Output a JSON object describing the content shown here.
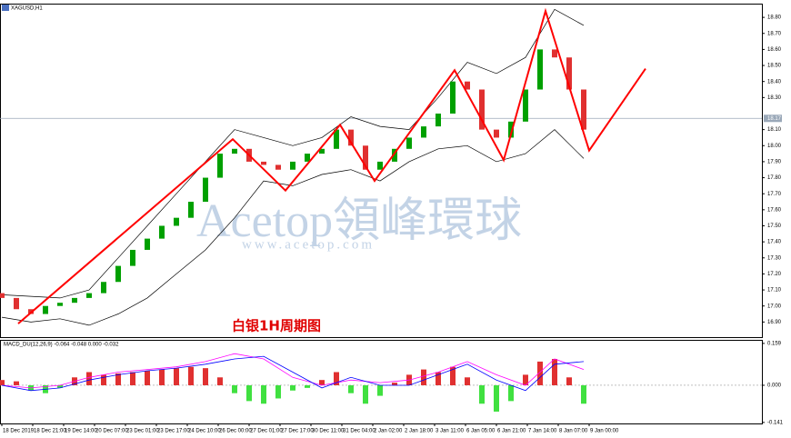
{
  "chart_data": [
    {
      "type": "candlestick",
      "title": "XAGUSD,H1",
      "annotation": "白银1H周期图",
      "watermark": "Acetop領峰環球",
      "watermark_url": "www.acetop.com",
      "xlim": [
        -1,
        418
      ],
      "xticks": [
        {
          "value": 0,
          "label": "18 Dec 2019"
        },
        {
          "value": 17,
          "label": "18 Dec 21:00"
        },
        {
          "value": 34,
          "label": "19 Dec 14:00"
        },
        {
          "value": 51,
          "label": "20 Dec 07:00"
        },
        {
          "value": 68,
          "label": "23 Dec 01:00"
        },
        {
          "value": 85,
          "label": "23 Dec 17:00"
        },
        {
          "value": 102,
          "label": "24 Dec 10:00"
        },
        {
          "value": 119,
          "label": "26 Dec 00:00"
        },
        {
          "value": 136,
          "label": "27 Dec 01:00"
        },
        {
          "value": 153,
          "label": "27 Dec 17:00"
        },
        {
          "value": 170,
          "label": "30 Dec 11:00"
        },
        {
          "value": 187,
          "label": "31 Dec 04:00"
        },
        {
          "value": 204,
          "label": "2 Jan 02:00"
        },
        {
          "value": 221,
          "label": "2 Jan 18:00"
        },
        {
          "value": 238,
          "label": "3 Jan 11:00"
        },
        {
          "value": 255,
          "label": "6 Jan 05:00"
        },
        {
          "value": 272,
          "label": "6 Jan 21:00"
        },
        {
          "value": 289,
          "label": "7 Jan 14:00"
        },
        {
          "value": 306,
          "label": "8 Jan 07:00"
        },
        {
          "value": 323,
          "label": "9 Jan 00:00"
        }
      ],
      "ylim": [
        16.8,
        18.88
      ],
      "yticks": [
        {
          "value": 16.9,
          "label": "16.90"
        },
        {
          "value": 17,
          "label": "17.00"
        },
        {
          "value": 17.1,
          "label": "17.10"
        },
        {
          "value": 17.2,
          "label": "17.20"
        },
        {
          "value": 17.3,
          "label": "17.30"
        },
        {
          "value": 17.4,
          "label": "17.40"
        },
        {
          "value": 17.5,
          "label": "17.50"
        },
        {
          "value": 17.6,
          "label": "17.60"
        },
        {
          "value": 17.7,
          "label": "17.70"
        },
        {
          "value": 17.8,
          "label": "17.80"
        },
        {
          "value": 17.9,
          "label": "17.90"
        },
        {
          "value": 18,
          "label": "18.00"
        },
        {
          "value": 18.1,
          "label": "18.10"
        },
        {
          "value": 18.3,
          "label": "18.30"
        },
        {
          "value": 18.4,
          "label": "18.40"
        },
        {
          "value": 18.5,
          "label": "18.50"
        },
        {
          "value": 18.6,
          "label": "18.60"
        },
        {
          "value": 18.7,
          "label": "18.70"
        },
        {
          "value": 18.8,
          "label": "18.80"
        }
      ],
      "current_price": 18.17,
      "candles": {
        "x": [
          0,
          8,
          16,
          24,
          32,
          40,
          48,
          56,
          64,
          72,
          80,
          88,
          96,
          104,
          112,
          120,
          128,
          136,
          144,
          152,
          160,
          168,
          176,
          184,
          192,
          200,
          208,
          216,
          224,
          232,
          240,
          248,
          256,
          264,
          272,
          280,
          288,
          296,
          304,
          312,
          320
        ],
        "open": [
          17.08,
          17.05,
          16.98,
          16.95,
          17.0,
          17.02,
          17.05,
          17.08,
          17.15,
          17.25,
          17.35,
          17.42,
          17.5,
          17.55,
          17.65,
          17.8,
          17.95,
          17.98,
          17.9,
          17.88,
          17.85,
          17.9,
          17.95,
          17.98,
          18.1,
          18.0,
          17.85,
          17.9,
          17.98,
          18.05,
          18.12,
          18.2,
          18.4,
          18.35,
          18.1,
          18.05,
          18.15,
          18.35,
          18.6,
          18.55,
          18.35
        ],
        "close": [
          17.05,
          16.98,
          16.95,
          17.0,
          17.02,
          17.05,
          17.08,
          17.15,
          17.25,
          17.35,
          17.42,
          17.5,
          17.55,
          17.65,
          17.8,
          17.95,
          17.98,
          17.9,
          17.88,
          17.85,
          17.9,
          17.95,
          17.98,
          18.1,
          18.0,
          17.85,
          17.9,
          17.98,
          18.05,
          18.12,
          18.2,
          18.4,
          18.35,
          18.1,
          18.05,
          18.15,
          18.35,
          18.6,
          18.55,
          18.35,
          18.1
        ],
        "up_color": "#00a000",
        "down_color": "#e03030"
      },
      "bands": {
        "x": [
          0,
          16,
          32,
          48,
          64,
          80,
          96,
          112,
          128,
          144,
          160,
          176,
          192,
          208,
          224,
          240,
          256,
          272,
          288,
          304,
          320
        ],
        "upper": [
          17.07,
          17.06,
          17.05,
          17.1,
          17.3,
          17.5,
          17.7,
          17.9,
          18.1,
          18.05,
          18.0,
          18.05,
          18.18,
          18.12,
          18.1,
          18.3,
          18.52,
          18.45,
          18.55,
          18.85,
          18.75
        ],
        "lower": [
          16.93,
          16.9,
          16.92,
          16.88,
          16.95,
          17.05,
          17.2,
          17.35,
          17.55,
          17.78,
          17.75,
          17.82,
          17.85,
          17.78,
          17.9,
          17.98,
          18.0,
          17.9,
          17.95,
          18.1,
          17.92
        ],
        "color": "#000000"
      },
      "zigzag": {
        "x": [
          9,
          127,
          156,
          186,
          205,
          249,
          276,
          299,
          323,
          354
        ],
        "values": [
          16.89,
          18.04,
          17.72,
          18.13,
          17.78,
          18.47,
          17.91,
          18.84,
          17.97,
          18.48
        ],
        "color": "#ff0000"
      }
    },
    {
      "type": "macd",
      "title": "MACD_DU(12,26,9) -0.064 -0.048 0.000 -0.032",
      "ylim": [
        -0.145,
        0.169
      ],
      "yticks": [
        {
          "value": -0.141,
          "label": "-0.141"
        },
        {
          "value": 0,
          "label": "0.000"
        },
        {
          "value": 0.159,
          "label": "0.159"
        }
      ],
      "histogram": {
        "x": [
          0,
          8,
          16,
          24,
          32,
          40,
          48,
          56,
          64,
          72,
          80,
          88,
          96,
          104,
          112,
          120,
          128,
          136,
          144,
          152,
          160,
          168,
          176,
          184,
          192,
          200,
          208,
          216,
          224,
          232,
          240,
          248,
          256,
          264,
          272,
          280,
          288,
          296,
          304,
          312,
          320
        ],
        "values": [
          0.02,
          0.015,
          -0.02,
          -0.03,
          -0.01,
          0.03,
          0.05,
          0.04,
          0.045,
          0.05,
          0.055,
          0.06,
          0.065,
          0.07,
          0.065,
          0.03,
          -0.03,
          -0.06,
          -0.07,
          -0.05,
          -0.02,
          -0.01,
          0.02,
          0.05,
          -0.03,
          -0.07,
          -0.04,
          0.01,
          0.04,
          0.06,
          0.05,
          0.07,
          0.03,
          -0.07,
          -0.1,
          -0.06,
          0.04,
          0.09,
          0.1,
          0.03,
          -0.07
        ],
        "up_color": "#e03030",
        "down_color": "#40e040"
      },
      "lines": {
        "x": [
          0,
          16,
          32,
          48,
          64,
          80,
          96,
          112,
          128,
          144,
          160,
          176,
          192,
          208,
          224,
          240,
          256,
          272,
          288,
          304,
          320
        ],
        "series": [
          {
            "color": "#ff00ff",
            "values": [
              0.0,
              -0.01,
              0.0,
              0.03,
              0.05,
              0.06,
              0.07,
              0.09,
              0.12,
              0.1,
              0.03,
              0.0,
              0.02,
              0.01,
              0.02,
              0.05,
              0.09,
              0.04,
              0.0,
              0.1,
              0.06
            ]
          },
          {
            "color": "#0000ff",
            "values": [
              0.0,
              -0.02,
              -0.01,
              0.02,
              0.04,
              0.055,
              0.065,
              0.08,
              0.1,
              0.11,
              0.05,
              -0.01,
              0.03,
              0.0,
              0.0,
              0.04,
              0.08,
              0.02,
              -0.02,
              0.08,
              0.09
            ]
          }
        ]
      }
    }
  ]
}
